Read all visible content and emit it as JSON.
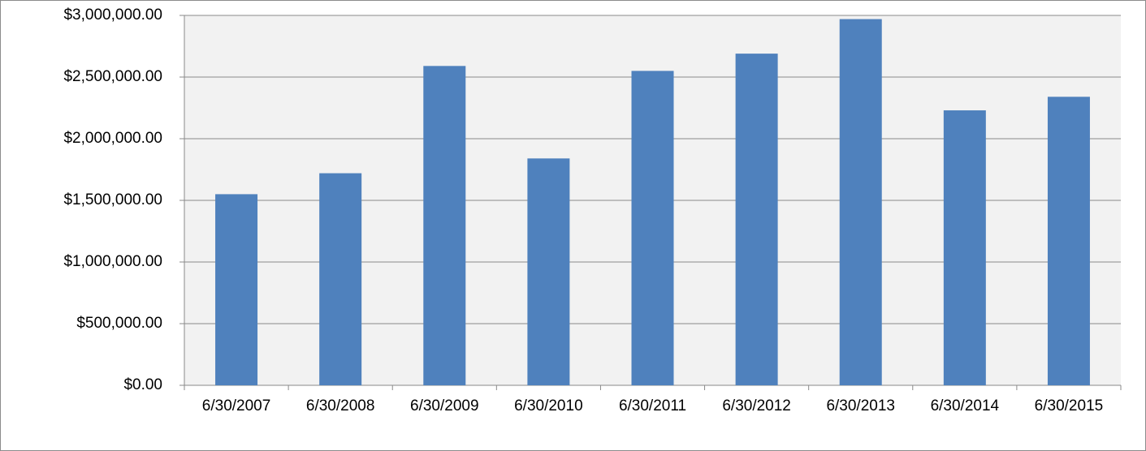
{
  "chart_data": {
    "type": "bar",
    "categories": [
      "6/30/2007",
      "6/30/2008",
      "6/30/2009",
      "6/30/2010",
      "6/30/2011",
      "6/30/2012",
      "6/30/2013",
      "6/30/2014",
      "6/30/2015"
    ],
    "values": [
      1550000,
      1720000,
      2590000,
      1840000,
      2550000,
      2690000,
      2970000,
      2230000,
      2340000
    ],
    "color": "#4f81bd",
    "ylim": [
      0,
      3000000
    ],
    "yticks": [
      {
        "value": 0,
        "label": "$0.00"
      },
      {
        "value": 500000,
        "label": "$500,000.00"
      },
      {
        "value": 1000000,
        "label": "$1,000,000.00"
      },
      {
        "value": 1500000,
        "label": "$1,500,000.00"
      },
      {
        "value": 2000000,
        "label": "$2,000,000.00"
      },
      {
        "value": 2500000,
        "label": "$2,500,000.00"
      },
      {
        "value": 3000000,
        "label": "$3,000,000.00"
      }
    ],
    "grid": true
  }
}
